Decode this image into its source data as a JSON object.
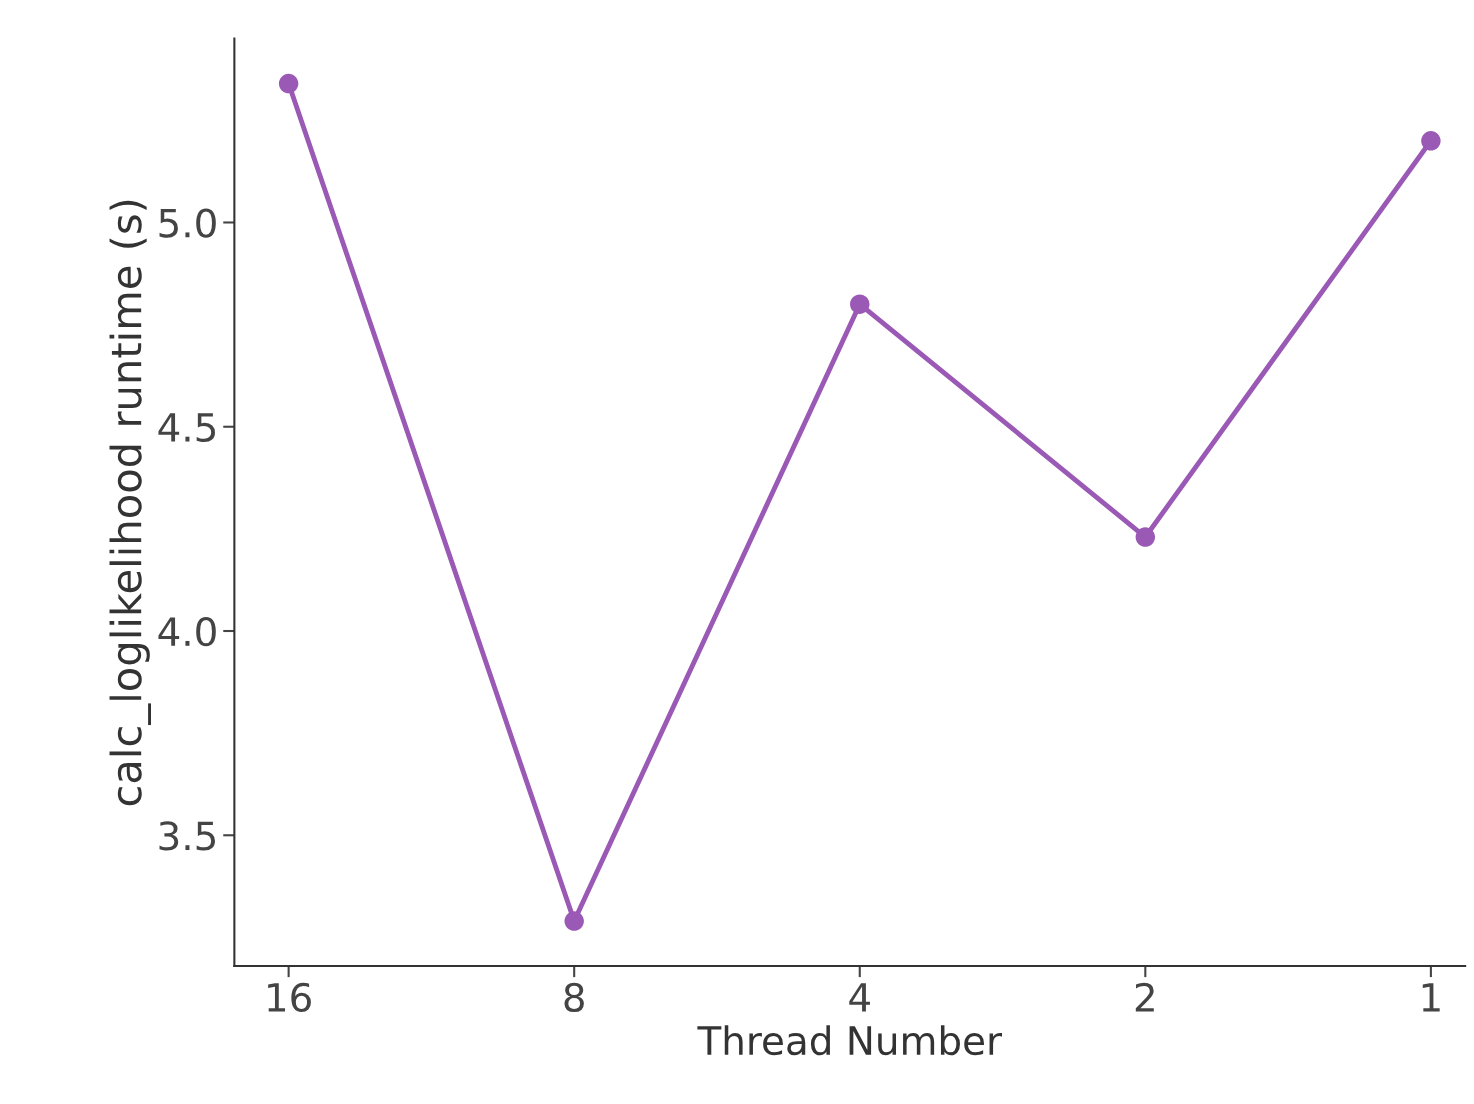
{
  "chart_data": {
    "type": "line",
    "xlabel": "Thread Number",
    "ylabel": "calc_loglikelihood runtime (s)",
    "categories": [
      "16",
      "8",
      "4",
      "2",
      "1"
    ],
    "series": [
      {
        "color": "#9b59b6",
        "values": [
          5.34,
          3.29,
          4.8,
          4.23,
          5.2
        ]
      }
    ],
    "ylim": [
      3.18,
      5.45
    ],
    "yticks": [
      3.5,
      {
        "value": 4,
        "label": "4.0"
      },
      4.5,
      {
        "value": 5,
        "label": "5.0"
      }
    ],
    "grid": false,
    "legend": false,
    "marker": "circle",
    "line_style": "solid"
  }
}
